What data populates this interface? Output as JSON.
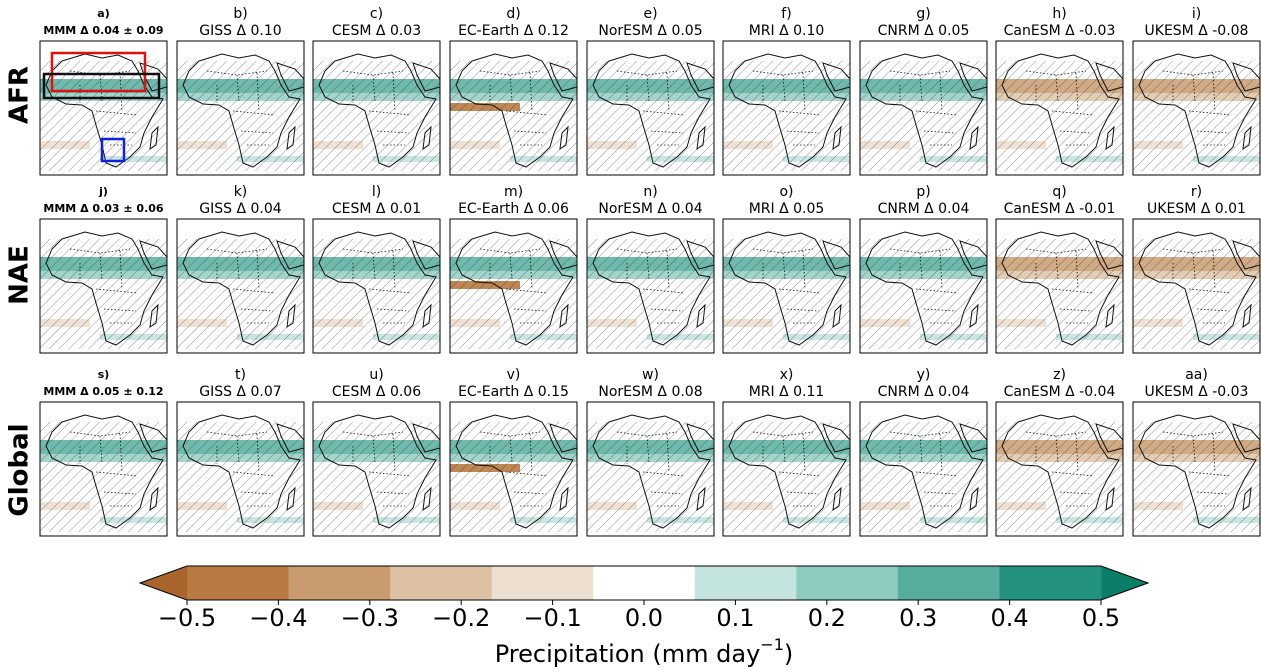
{
  "rows": [
    {
      "label": "AFR",
      "panels": [
        {
          "letter": "a)",
          "title": "MMM Δ 0.04 ± 0.09"
        },
        {
          "letter": "b)",
          "title": "GISS Δ 0.10"
        },
        {
          "letter": "c)",
          "title": "CESM Δ 0.03"
        },
        {
          "letter": "d)",
          "title": "EC-Earth Δ 0.12"
        },
        {
          "letter": "e)",
          "title": "NorESM Δ 0.05"
        },
        {
          "letter": "f)",
          "title": "MRI Δ 0.10"
        },
        {
          "letter": "g)",
          "title": "CNRM Δ 0.05"
        },
        {
          "letter": "h)",
          "title": "CanESM Δ -0.03"
        },
        {
          "letter": "i)",
          "title": "UKESM Δ -0.08"
        }
      ]
    },
    {
      "label": "NAE",
      "panels": [
        {
          "letter": "j)",
          "title": "MMM Δ 0.03 ± 0.06"
        },
        {
          "letter": "k)",
          "title": "GISS Δ 0.04"
        },
        {
          "letter": "l)",
          "title": "CESM Δ 0.01"
        },
        {
          "letter": "m)",
          "title": "EC-Earth Δ 0.06"
        },
        {
          "letter": "n)",
          "title": "NorESM Δ 0.04"
        },
        {
          "letter": "o)",
          "title": "MRI Δ 0.05"
        },
        {
          "letter": "p)",
          "title": "CNRM Δ 0.04"
        },
        {
          "letter": "q)",
          "title": "CanESM Δ -0.01"
        },
        {
          "letter": "r)",
          "title": "UKESM Δ 0.01"
        }
      ]
    },
    {
      "label": "Global",
      "panels": [
        {
          "letter": "s)",
          "title": "MMM Δ 0.05 ± 0.12"
        },
        {
          "letter": "t)",
          "title": "GISS Δ 0.07"
        },
        {
          "letter": "u)",
          "title": "CESM Δ 0.06"
        },
        {
          "letter": "v)",
          "title": "EC-Earth Δ 0.15"
        },
        {
          "letter": "w)",
          "title": "NorESM Δ 0.08"
        },
        {
          "letter": "x)",
          "title": "MRI Δ 0.11"
        },
        {
          "letter": "y)",
          "title": "CNRM Δ 0.04"
        },
        {
          "letter": "z)",
          "title": "CanESM Δ -0.04"
        },
        {
          "letter": "aa)",
          "title": "UKESM Δ -0.03"
        }
      ]
    }
  ],
  "colorbar": {
    "lim": [
      -0.5,
      0.5
    ],
    "ticks": [
      {
        "value": -0.5,
        "label": "−0.5"
      },
      {
        "value": -0.4,
        "label": "−0.4"
      },
      {
        "value": -0.3,
        "label": "−0.3"
      },
      {
        "value": -0.2,
        "label": "−0.2"
      },
      {
        "value": -0.1,
        "label": "−0.1"
      },
      {
        "value": 0,
        "label": "0.0"
      },
      0.1,
      0.2,
      0.3,
      0.4,
      0.5
    ],
    "colors": [
      "#b87a40",
      "#c99c70",
      "#ddc1a3",
      "#eddfd0",
      "#ffffff",
      "#c3e4df",
      "#8dcac0",
      "#57ae9f",
      "#22917d"
    ],
    "extend_colors": [
      "#a9652b",
      "#0b7e68"
    ],
    "label": "Precipitation (mm day",
    "label_exponent": "−1",
    "label_end": ")"
  }
}
